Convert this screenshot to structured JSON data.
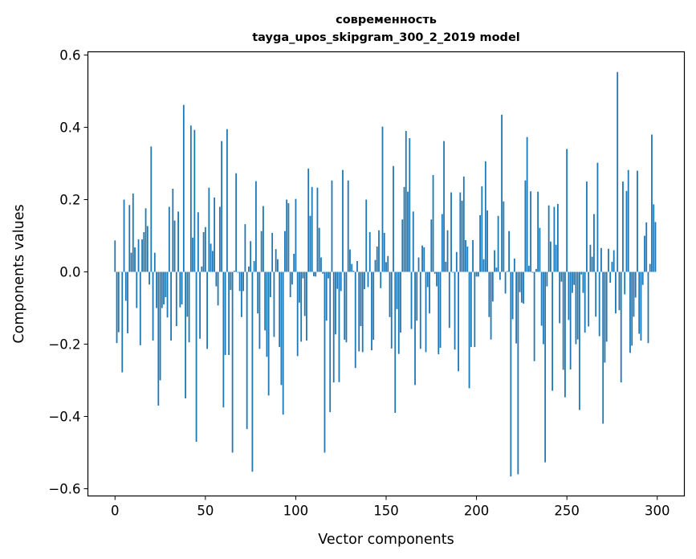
{
  "chart_data": {
    "type": "bar",
    "title": "современность",
    "subtitle": "tayga_upos_skipgram_300_2_2019 model",
    "xlabel": "Vector components",
    "ylabel": "Components values",
    "xlim": [
      -15,
      315
    ],
    "ylim": [
      -0.62,
      0.609
    ],
    "xticks": [
      0,
      50,
      100,
      150,
      200,
      250,
      300
    ],
    "xtick_labels": [
      "0",
      "50",
      "100",
      "150",
      "200",
      "250",
      "300"
    ],
    "yticks": [
      -0.6,
      -0.4,
      -0.2,
      0.0,
      0.2,
      0.4,
      0.6
    ],
    "ytick_labels": [
      "−0.6",
      "−0.4",
      "−0.2",
      "0.0",
      "0.2",
      "0.4",
      "0.6"
    ],
    "grid": false,
    "color": "#1f77b4",
    "values": [
      0.087,
      -0.197,
      -0.167,
      0.0,
      -0.278,
      0.2,
      -0.08,
      -0.17,
      0.185,
      0.053,
      0.217,
      0.068,
      -0.1,
      0.09,
      -0.203,
      0.09,
      0.11,
      0.176,
      0.127,
      -0.035,
      0.347,
      -0.19,
      0.053,
      -0.1,
      -0.37,
      -0.3,
      -0.1,
      -0.09,
      -0.07,
      -0.126,
      0.18,
      -0.19,
      0.23,
      0.142,
      -0.15,
      0.167,
      -0.098,
      -0.09,
      0.462,
      -0.35,
      -0.124,
      -0.195,
      0.405,
      0.095,
      0.393,
      -0.47,
      0.165,
      -0.185,
      0.015,
      0.11,
      0.124,
      -0.213,
      0.233,
      0.078,
      0.058,
      0.206,
      -0.04,
      -0.093,
      0.18,
      0.362,
      -0.375,
      -0.23,
      0.395,
      -0.23,
      -0.05,
      -0.5,
      0.003,
      0.273,
      -0.002,
      -0.053,
      -0.125,
      -0.053,
      0.132,
      -0.435,
      0.015,
      0.085,
      -0.553,
      0.03,
      0.251,
      -0.115,
      -0.213,
      0.113,
      0.182,
      -0.162,
      -0.235,
      -0.342,
      -0.07,
      0.108,
      -0.18,
      0.063,
      0.035,
      -0.208,
      -0.313,
      -0.395,
      0.113,
      0.2,
      0.19,
      -0.07,
      -0.035,
      0.05,
      0.202,
      -0.233,
      -0.085,
      -0.193,
      -0.018,
      -0.122,
      -0.19,
      0.286,
      0.155,
      0.235,
      -0.012,
      -0.013,
      0.233,
      0.122,
      0.04,
      -0.005,
      -0.5,
      -0.135,
      -0.018,
      -0.388,
      0.253,
      -0.306,
      -0.173,
      -0.047,
      -0.305,
      -0.053,
      0.282,
      -0.188,
      -0.195,
      0.253,
      0.062,
      0.022,
      0.003,
      -0.266,
      0.03,
      -0.22,
      -0.15,
      -0.222,
      -0.048,
      0.2,
      -0.042,
      0.11,
      -0.217,
      -0.188,
      0.033,
      0.07,
      0.115,
      -0.045,
      0.402,
      0.108,
      0.027,
      0.044,
      -0.125,
      -0.212,
      0.293,
      -0.39,
      -0.103,
      -0.227,
      -0.168,
      0.145,
      0.235,
      0.39,
      0.222,
      0.37,
      -0.158,
      0.167,
      -0.313,
      -0.135,
      0.04,
      -0.213,
      0.073,
      0.068,
      -0.222,
      -0.042,
      -0.115,
      0.145,
      0.268,
      -0.005,
      -0.04,
      -0.228,
      -0.21,
      0.16,
      0.362,
      0.028,
      0.115,
      -0.155,
      0.22,
      -0.002,
      -0.215,
      0.055,
      -0.275,
      0.22,
      0.197,
      0.264,
      0.088,
      0.07,
      -0.322,
      -0.208,
      0.088,
      -0.208,
      -0.013,
      -0.013,
      0.157,
      0.237,
      0.035,
      0.306,
      0.17,
      -0.125,
      -0.187,
      -0.082,
      0.06,
      0.012,
      0.155,
      -0.022,
      0.435,
      0.195,
      -0.06,
      0.002,
      0.113,
      -0.566,
      -0.131,
      0.037,
      -0.198,
      -0.56,
      -0.056,
      -0.085,
      -0.088,
      0.253,
      0.373,
      0.017,
      0.223,
      -0.002,
      -0.247,
      0.008,
      0.222,
      0.122,
      -0.149,
      -0.2,
      -0.527,
      -0.04,
      0.184,
      0.084,
      -0.329,
      0.18,
      0.075,
      0.188,
      -0.142,
      -0.027,
      -0.271,
      -0.347,
      0.34,
      -0.133,
      -0.27,
      -0.058,
      -0.036,
      -0.2,
      -0.187,
      -0.382,
      -0.007,
      -0.058,
      -0.168,
      0.25,
      -0.151,
      0.075,
      0.042,
      0.16,
      -0.124,
      0.302,
      -0.178,
      0.066,
      -0.42,
      -0.251,
      -0.193,
      0.064,
      -0.03,
      0.028,
      0.06,
      -0.115,
      0.553,
      -0.106,
      -0.306,
      0.25,
      -0.062,
      0.224,
      0.282,
      -0.224,
      -0.204,
      -0.124,
      -0.071,
      0.28,
      -0.171,
      -0.19,
      -0.036,
      0.1,
      0.137,
      -0.197,
      0.022,
      0.38,
      0.187,
      0.138
    ]
  }
}
